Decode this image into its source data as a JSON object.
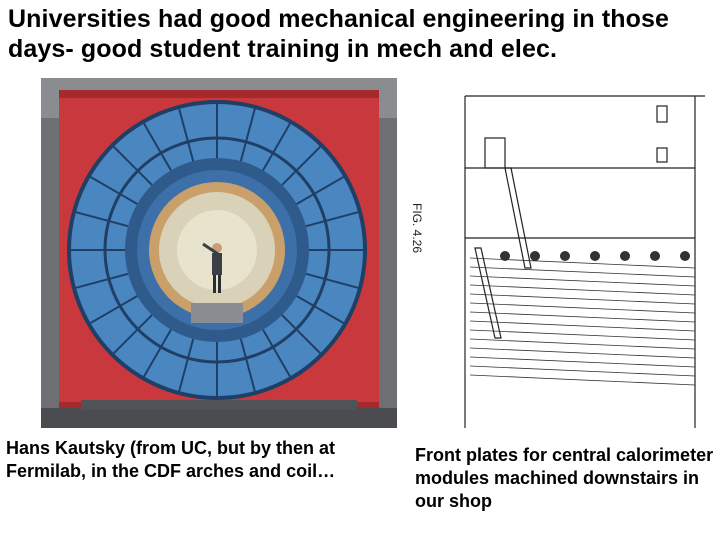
{
  "slide": {
    "title": "Universities had good mechanical engineering in those days- good student training in mech and elec.",
    "photo_caption": "Hans Kautsky (from UC, but by then at Fermilab, in the CDF arches and coil…",
    "drawing_caption": "Front plates for central calorimeter modules machined downstairs in our shop",
    "drawing_label": "FIG. 4.26"
  },
  "colors": {
    "frame_red": "#c8383c",
    "wedge_blue": "#4a86c0",
    "dark_blue": "#1f3f66",
    "bore": "#d9d2b8"
  }
}
